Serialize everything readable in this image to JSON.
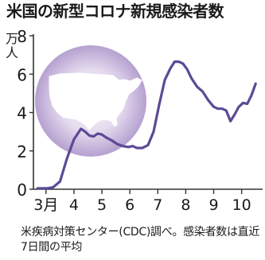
{
  "title": "米国の新型コロナ新規感染者数",
  "unit_label": "万人",
  "source_note": "米疾病対策センター(CDC)調べ。感染者数は直近7日間の平均",
  "colors": {
    "line": "#5c4a97",
    "axis": "#333333",
    "map_fill": "#ffffff",
    "halo_inner": "#f4eff9",
    "halo_outer": "#b8a3d3"
  },
  "chart_data": {
    "type": "line",
    "title": "米国の新型コロナ新規感染者数",
    "ylabel": "万人",
    "ylim": [
      0,
      8
    ],
    "yticks": [
      0,
      2,
      4,
      6,
      8
    ],
    "x_tick_labels": [
      "3月",
      "4",
      "5",
      "6",
      "7",
      "8",
      "9",
      "10"
    ],
    "x_tick_positions": [
      3,
      4,
      5,
      6,
      7,
      8,
      9,
      10
    ],
    "xlim": [
      2.55,
      10.75
    ],
    "grid": false,
    "legend": "none",
    "series": [
      {
        "x": [
          2.7,
          3.05,
          3.25,
          3.5,
          3.75,
          4.0,
          4.25,
          4.4,
          4.55,
          4.7,
          4.85,
          5.0,
          5.15,
          5.35,
          5.55,
          5.75,
          5.95,
          6.1,
          6.25,
          6.45,
          6.65,
          6.85,
          7.05,
          7.25,
          7.45,
          7.6,
          7.75,
          7.9,
          8.05,
          8.2,
          8.4,
          8.6,
          8.8,
          9.0,
          9.15,
          9.3,
          9.45,
          9.6,
          9.75,
          9.9,
          10.05,
          10.2,
          10.35,
          10.5
        ],
        "y": [
          0.05,
          0.05,
          0.1,
          0.4,
          1.6,
          2.6,
          3.15,
          3.0,
          2.8,
          2.75,
          2.9,
          2.85,
          2.7,
          2.55,
          2.35,
          2.25,
          2.2,
          2.25,
          2.15,
          2.15,
          2.3,
          3.0,
          4.4,
          5.7,
          6.3,
          6.65,
          6.65,
          6.55,
          6.25,
          5.8,
          5.35,
          5.1,
          4.65,
          4.3,
          4.2,
          4.2,
          4.1,
          3.55,
          3.9,
          4.3,
          4.5,
          4.45,
          4.9,
          5.5
        ]
      }
    ]
  }
}
